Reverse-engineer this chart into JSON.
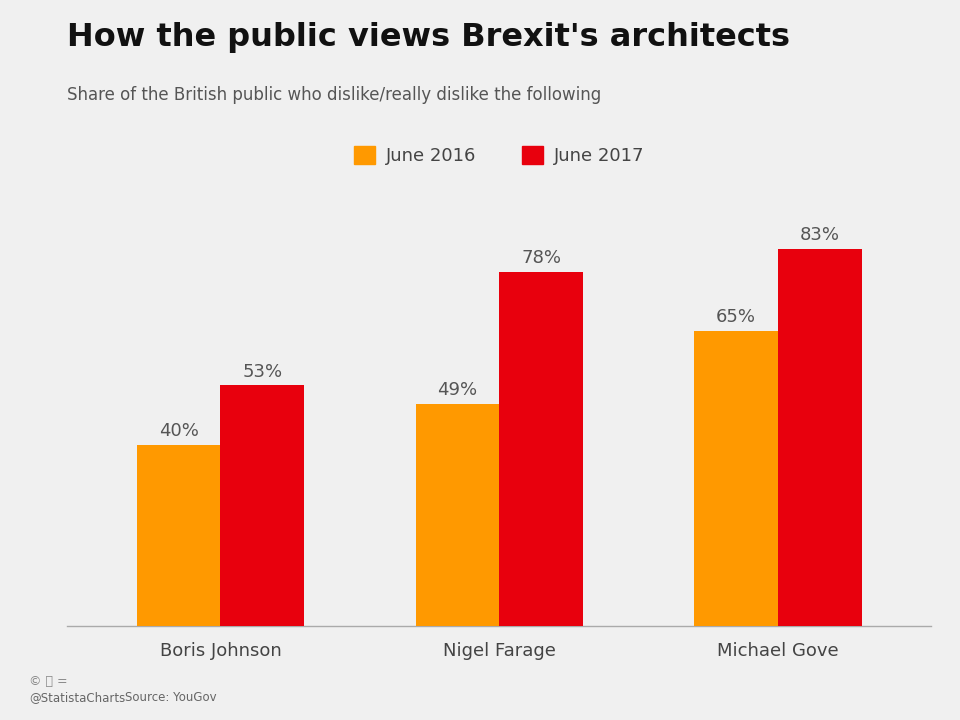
{
  "title": "How the public views Brexit's architects",
  "subtitle": "Share of the British public who dislike/really dislike the following",
  "categories": [
    "Boris Johnson",
    "Nigel Farage",
    "Michael Gove"
  ],
  "june2016": [
    40,
    49,
    65
  ],
  "june2017": [
    53,
    78,
    83
  ],
  "color_2016": "#FF9900",
  "color_2017": "#E8000D",
  "background_color": "#f0f0f0",
  "title_fontsize": 23,
  "subtitle_fontsize": 12,
  "label_fontsize": 13,
  "tick_fontsize": 13,
  "legend_fontsize": 13,
  "bar_width": 0.3,
  "ylim": [
    0,
    95
  ],
  "source_left": "@StatistaCharts",
  "source_right": "Source: YouGov",
  "legend_labels": [
    "June 2016",
    "June 2017"
  ]
}
